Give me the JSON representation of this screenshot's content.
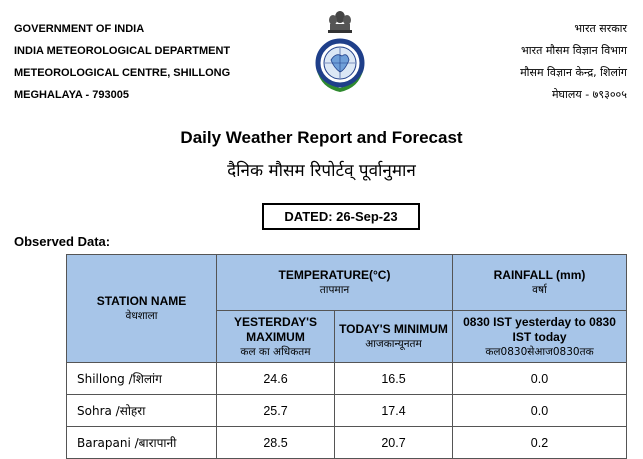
{
  "header": {
    "left": [
      "GOVERNMENT OF INDIA",
      "INDIA METEOROLOGICAL DEPARTMENT",
      "METEOROLOGICAL CENTRE, SHILLONG",
      "MEGHALAYA - 793005"
    ],
    "right": [
      "भारत सरकार",
      "भारत मौसम विज्ञान विभाग",
      "मौसम विज्ञान केन्द्र,  शिलांग",
      "मेघालय - ७९३००५"
    ],
    "emblem_text": "INDIA METEOROLOGICAL DEPARTMENT"
  },
  "title": "Daily Weather Report and Forecast",
  "title_hindi": "दैनिक मौसम रिपोर्टव् पूर्वानुमान",
  "dated": "DATED: 26-Sep-23",
  "observed_label": "Observed Data:",
  "table": {
    "station_header": "STATION NAME",
    "station_header_hi": "वेधशाला",
    "temperature_header": "TEMPERATURE(°C)",
    "temperature_header_hi": "तापमान",
    "rainfall_header": "RAINFALL (mm)",
    "rainfall_header_hi": "वर्षा",
    "max_header": "YESTERDAY'S MAXIMUM",
    "max_header_hi": "कल का अधिकतम",
    "min_header": "TODAY'S MINIMUM",
    "min_header_hi": "आजकान्यूनतम",
    "rain_sub_header": "0830 IST yesterday to 0830 IST today",
    "rain_sub_header_hi": "कल0830सेआज0830तक",
    "rows": [
      {
        "station": "Shillong /शिलांग",
        "max": "24.6",
        "min": "16.5",
        "rain": "0.0"
      },
      {
        "station": "Sohra /सोहरा",
        "max": "25.7",
        "min": "17.4",
        "rain": "0.0"
      },
      {
        "station": "Barapani /बारापानी",
        "max": "28.5",
        "min": "20.7",
        "rain": "0.2"
      }
    ]
  },
  "colors": {
    "header_bg": "#a7c5e8",
    "emblem_blue": "#1f3f8a",
    "emblem_green": "#2f8a2f"
  }
}
